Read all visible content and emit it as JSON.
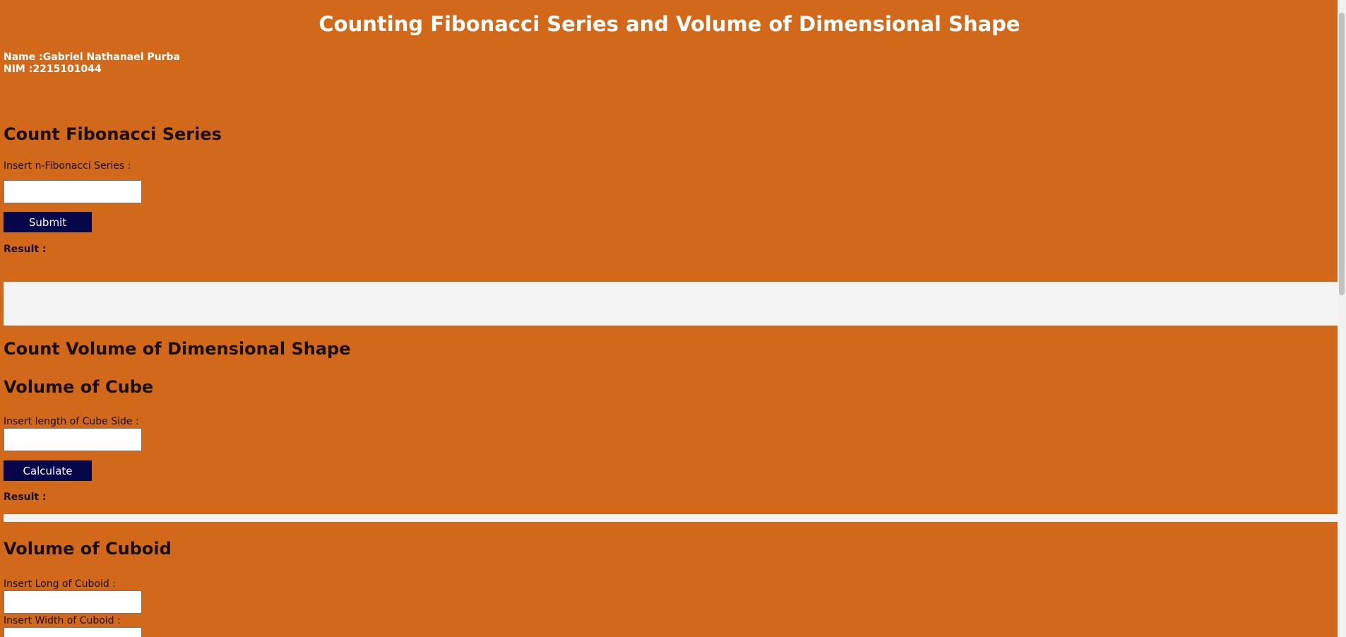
{
  "header": {
    "title": "Counting Fibonacci Series and Volume of Dimensional Shape",
    "name_line": "Name :Gabriel Nathanael Purba",
    "nim_line": "NIM :2215101044"
  },
  "fibonacci": {
    "heading": "Count Fibonacci Series",
    "input_label": "Insert n-Fibonacci Series :",
    "input_value": "",
    "submit_label": "Submit",
    "result_label": "Result :",
    "result_value": ""
  },
  "volume": {
    "heading": "Count Volume of Dimensional Shape",
    "cube": {
      "heading": "Volume of Cube",
      "input_label": "Insert length of Cube Side :",
      "input_value": "",
      "calculate_label": "Calculate",
      "result_label": "Result :",
      "result_value": ""
    },
    "cuboid": {
      "heading": "Volume of Cuboid",
      "long_label": "Insert Long of Cuboid :",
      "long_value": "",
      "width_label": "Insert Width of Cuboid :",
      "width_value": ""
    }
  },
  "colors": {
    "background": "#d2691a",
    "button": "#06064a",
    "result_box": "#f4f4f4"
  }
}
